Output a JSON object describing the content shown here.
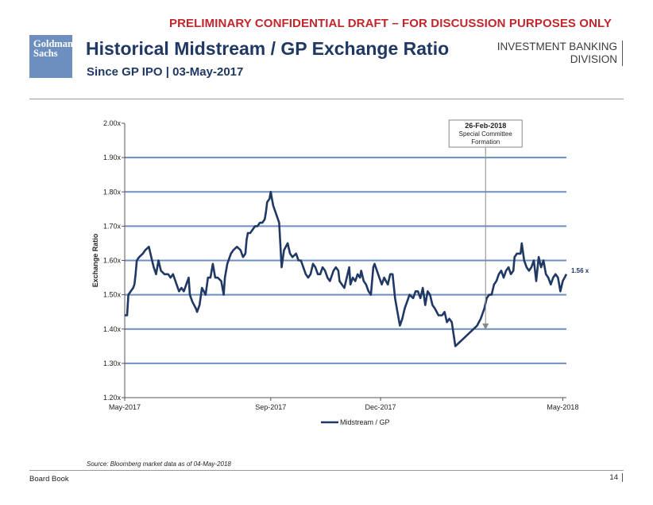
{
  "banner": "PRELIMINARY CONFIDENTIAL DRAFT – FOR DISCUSSION PURPOSES ONLY",
  "logo": {
    "line1": "Goldman",
    "line2": "Sachs"
  },
  "header": {
    "title": "Historical Midstream / GP Exchange Ratio",
    "subtitle": "Since GP IPO | 03-May-2017",
    "division_line1": "INVESTMENT BANKING",
    "division_line2": "DIVISION"
  },
  "source": "Source: Bloomberg market data as of 04-May-2018",
  "footer": {
    "left": "Board Book",
    "page": "14"
  },
  "colors": {
    "series": "#1f3864",
    "gridline": "#6d8fbf",
    "banner": "#c0272d",
    "logo": "#6d8fbf"
  },
  "chart_data": {
    "type": "line",
    "ylabel": "Exchange Ratio",
    "ylim": [
      1.2,
      2.0
    ],
    "yticks": [
      2.0,
      1.9,
      1.8,
      1.7,
      1.6,
      1.5,
      1.4,
      1.3,
      1.2
    ],
    "ytick_labels": [
      "2.00x",
      "1.90x",
      "1.80x",
      "1.70x",
      "1.60x",
      "1.50x",
      "1.40x",
      "1.30x",
      "1.20x"
    ],
    "xlim": [
      "2017-05-03",
      "2018-05-04"
    ],
    "xticks": [
      "2017-05-03",
      "2017-09-01",
      "2017-12-01",
      "2018-05-01"
    ],
    "xtick_labels": [
      "May-2017",
      "Sep-2017",
      "Dec-2017",
      "May-2018"
    ],
    "grid": true,
    "legend": {
      "position": "bottom",
      "entries": [
        "Midstream / GP"
      ]
    },
    "series": [
      {
        "name": "Midstream / GP",
        "points": [
          [
            "2017-05-03",
            1.44
          ],
          [
            "2017-05-05",
            1.44
          ],
          [
            "2017-05-06",
            1.5
          ],
          [
            "2017-05-08",
            1.51
          ],
          [
            "2017-05-10",
            1.52
          ],
          [
            "2017-05-11",
            1.53
          ],
          [
            "2017-05-12",
            1.56
          ],
          [
            "2017-05-13",
            1.6
          ],
          [
            "2017-05-15",
            1.61
          ],
          [
            "2017-05-18",
            1.62
          ],
          [
            "2017-05-20",
            1.63
          ],
          [
            "2017-05-23",
            1.64
          ],
          [
            "2017-05-25",
            1.61
          ],
          [
            "2017-05-27",
            1.58
          ],
          [
            "2017-05-29",
            1.56
          ],
          [
            "2017-05-31",
            1.6
          ],
          [
            "2017-06-02",
            1.57
          ],
          [
            "2017-06-05",
            1.56
          ],
          [
            "2017-06-08",
            1.56
          ],
          [
            "2017-06-10",
            1.55
          ],
          [
            "2017-06-12",
            1.56
          ],
          [
            "2017-06-15",
            1.53
          ],
          [
            "2017-06-17",
            1.51
          ],
          [
            "2017-06-19",
            1.52
          ],
          [
            "2017-06-21",
            1.51
          ],
          [
            "2017-06-23",
            1.53
          ],
          [
            "2017-06-25",
            1.55
          ],
          [
            "2017-06-26",
            1.5
          ],
          [
            "2017-06-28",
            1.48
          ],
          [
            "2017-07-01",
            1.46
          ],
          [
            "2017-07-02",
            1.45
          ],
          [
            "2017-07-04",
            1.47
          ],
          [
            "2017-07-06",
            1.52
          ],
          [
            "2017-07-09",
            1.5
          ],
          [
            "2017-07-11",
            1.55
          ],
          [
            "2017-07-13",
            1.55
          ],
          [
            "2017-07-15",
            1.59
          ],
          [
            "2017-07-17",
            1.55
          ],
          [
            "2017-07-19",
            1.55
          ],
          [
            "2017-07-22",
            1.54
          ],
          [
            "2017-07-24",
            1.5
          ],
          [
            "2017-07-25",
            1.55
          ],
          [
            "2017-07-27",
            1.59
          ],
          [
            "2017-07-30",
            1.62
          ],
          [
            "2017-08-01",
            1.63
          ],
          [
            "2017-08-04",
            1.64
          ],
          [
            "2017-08-07",
            1.63
          ],
          [
            "2017-08-09",
            1.61
          ],
          [
            "2017-08-11",
            1.62
          ],
          [
            "2017-08-12",
            1.66
          ],
          [
            "2017-08-13",
            1.68
          ],
          [
            "2017-08-15",
            1.68
          ],
          [
            "2017-08-17",
            1.69
          ],
          [
            "2017-08-19",
            1.7
          ],
          [
            "2017-08-21",
            1.7
          ],
          [
            "2017-08-23",
            1.71
          ],
          [
            "2017-08-25",
            1.71
          ],
          [
            "2017-08-27",
            1.72
          ],
          [
            "2017-08-28",
            1.74
          ],
          [
            "2017-08-29",
            1.77
          ],
          [
            "2017-08-31",
            1.78
          ],
          [
            "2017-09-01",
            1.8
          ],
          [
            "2017-09-02",
            1.78
          ],
          [
            "2017-09-03",
            1.76
          ],
          [
            "2017-09-05",
            1.74
          ],
          [
            "2017-09-08",
            1.71
          ],
          [
            "2017-09-10",
            1.58
          ],
          [
            "2017-09-12",
            1.63
          ],
          [
            "2017-09-15",
            1.65
          ],
          [
            "2017-09-17",
            1.62
          ],
          [
            "2017-09-19",
            1.61
          ],
          [
            "2017-09-22",
            1.62
          ],
          [
            "2017-09-24",
            1.6
          ],
          [
            "2017-09-26",
            1.6
          ],
          [
            "2017-09-28",
            1.58
          ],
          [
            "2017-09-30",
            1.56
          ],
          [
            "2017-10-02",
            1.55
          ],
          [
            "2017-10-04",
            1.56
          ],
          [
            "2017-10-06",
            1.59
          ],
          [
            "2017-10-08",
            1.58
          ],
          [
            "2017-10-10",
            1.56
          ],
          [
            "2017-10-12",
            1.56
          ],
          [
            "2017-10-14",
            1.58
          ],
          [
            "2017-10-16",
            1.57
          ],
          [
            "2017-10-18",
            1.55
          ],
          [
            "2017-10-20",
            1.54
          ],
          [
            "2017-10-23",
            1.57
          ],
          [
            "2017-10-25",
            1.58
          ],
          [
            "2017-10-27",
            1.57
          ],
          [
            "2017-10-28",
            1.54
          ],
          [
            "2017-10-30",
            1.53
          ],
          [
            "2017-11-01",
            1.52
          ],
          [
            "2017-11-03",
            1.55
          ],
          [
            "2017-11-05",
            1.58
          ],
          [
            "2017-11-06",
            1.53
          ],
          [
            "2017-11-08",
            1.55
          ],
          [
            "2017-11-10",
            1.54
          ],
          [
            "2017-11-12",
            1.56
          ],
          [
            "2017-11-14",
            1.55
          ],
          [
            "2017-11-15",
            1.57
          ],
          [
            "2017-11-17",
            1.54
          ],
          [
            "2017-11-19",
            1.53
          ],
          [
            "2017-11-21",
            1.51
          ],
          [
            "2017-11-23",
            1.5
          ],
          [
            "2017-11-25",
            1.58
          ],
          [
            "2017-11-26",
            1.59
          ],
          [
            "2017-11-28",
            1.57
          ],
          [
            "2017-11-30",
            1.55
          ],
          [
            "2017-12-02",
            1.53
          ],
          [
            "2017-12-04",
            1.55
          ],
          [
            "2017-12-07",
            1.53
          ],
          [
            "2017-12-09",
            1.56
          ],
          [
            "2017-12-11",
            1.56
          ],
          [
            "2017-12-13",
            1.49
          ],
          [
            "2017-12-15",
            1.45
          ],
          [
            "2017-12-17",
            1.41
          ],
          [
            "2017-12-19",
            1.43
          ],
          [
            "2017-12-21",
            1.46
          ],
          [
            "2017-12-23",
            1.48
          ],
          [
            "2017-12-25",
            1.5
          ],
          [
            "2017-12-28",
            1.49
          ],
          [
            "2017-12-30",
            1.51
          ],
          [
            "2018-01-01",
            1.51
          ],
          [
            "2018-01-03",
            1.49
          ],
          [
            "2018-01-05",
            1.52
          ],
          [
            "2018-01-07",
            1.47
          ],
          [
            "2018-01-09",
            1.51
          ],
          [
            "2018-01-11",
            1.5
          ],
          [
            "2018-01-13",
            1.47
          ],
          [
            "2018-01-15",
            1.46
          ],
          [
            "2018-01-18",
            1.44
          ],
          [
            "2018-01-21",
            1.44
          ],
          [
            "2018-01-23",
            1.45
          ],
          [
            "2018-01-25",
            1.42
          ],
          [
            "2018-01-27",
            1.43
          ],
          [
            "2018-01-29",
            1.42
          ],
          [
            "2018-02-01",
            1.35
          ],
          [
            "2018-02-04",
            1.36
          ],
          [
            "2018-02-07",
            1.37
          ],
          [
            "2018-02-10",
            1.38
          ],
          [
            "2018-02-13",
            1.39
          ],
          [
            "2018-02-16",
            1.4
          ],
          [
            "2018-02-19",
            1.41
          ],
          [
            "2018-02-22",
            1.43
          ],
          [
            "2018-02-25",
            1.46
          ],
          [
            "2018-02-27",
            1.49
          ],
          [
            "2018-03-01",
            1.5
          ],
          [
            "2018-03-03",
            1.5
          ],
          [
            "2018-03-05",
            1.53
          ],
          [
            "2018-03-07",
            1.54
          ],
          [
            "2018-03-09",
            1.56
          ],
          [
            "2018-03-11",
            1.57
          ],
          [
            "2018-03-13",
            1.55
          ],
          [
            "2018-03-15",
            1.57
          ],
          [
            "2018-03-17",
            1.58
          ],
          [
            "2018-03-19",
            1.56
          ],
          [
            "2018-03-21",
            1.57
          ],
          [
            "2018-03-22",
            1.61
          ],
          [
            "2018-03-24",
            1.62
          ],
          [
            "2018-03-27",
            1.62
          ],
          [
            "2018-03-28",
            1.65
          ],
          [
            "2018-03-30",
            1.6
          ],
          [
            "2018-04-01",
            1.58
          ],
          [
            "2018-04-03",
            1.57
          ],
          [
            "2018-04-05",
            1.58
          ],
          [
            "2018-04-07",
            1.6
          ],
          [
            "2018-04-09",
            1.54
          ],
          [
            "2018-04-11",
            1.61
          ],
          [
            "2018-04-13",
            1.58
          ],
          [
            "2018-04-15",
            1.6
          ],
          [
            "2018-04-17",
            1.56
          ],
          [
            "2018-04-19",
            1.55
          ],
          [
            "2018-04-21",
            1.53
          ],
          [
            "2018-04-23",
            1.55
          ],
          [
            "2018-04-25",
            1.56
          ],
          [
            "2018-04-27",
            1.55
          ],
          [
            "2018-04-29",
            1.51
          ],
          [
            "2018-05-01",
            1.54
          ],
          [
            "2018-05-04",
            1.56
          ]
        ]
      }
    ],
    "end_label": "1.56 x",
    "annotation": {
      "date": "2018-02-26",
      "line1": "26-Feb-2018",
      "line2": "Special Committee",
      "line3": "Formation"
    }
  }
}
